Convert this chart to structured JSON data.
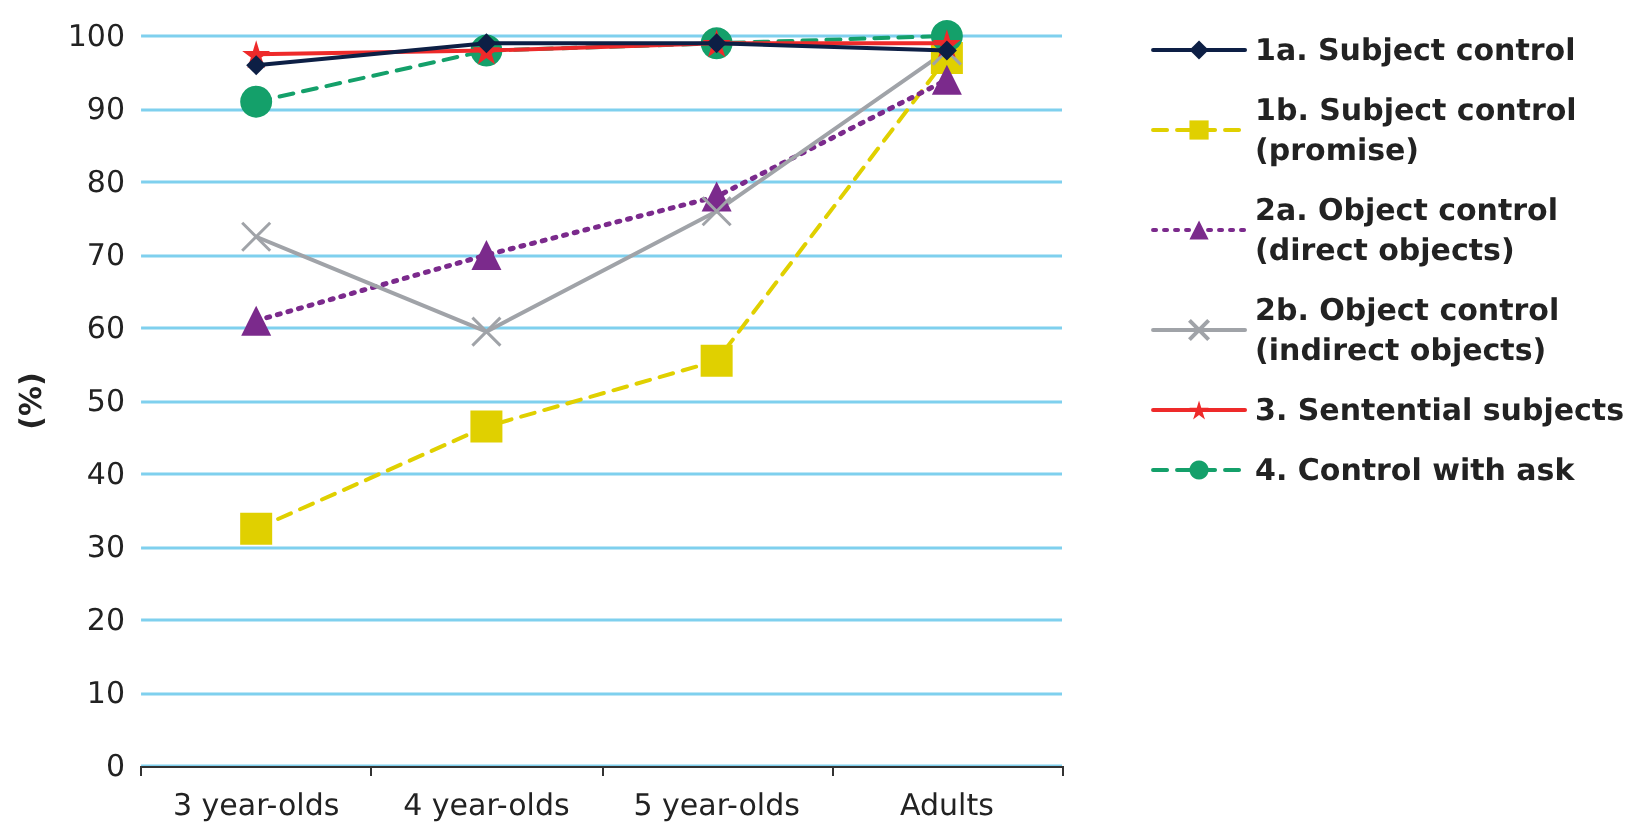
{
  "chart_data": {
    "type": "line",
    "ylabel": "(%)",
    "categories": [
      "3 year-olds",
      "4 year-olds",
      "5 year-olds",
      "Adults"
    ],
    "ylim": [
      0,
      100
    ],
    "yticks": [
      0,
      10,
      20,
      30,
      40,
      50,
      60,
      70,
      80,
      90,
      100
    ],
    "grid": "y",
    "legend": "right",
    "series": [
      {
        "name": "1a. Subject control",
        "color": "#0d1f45",
        "marker": "diamond",
        "line_style": "solid",
        "values": [
          96,
          99,
          99,
          98
        ]
      },
      {
        "name": "1b. Subject control\n(promise)",
        "color": "#e0d000",
        "marker": "square",
        "line_style": "dashed",
        "values": [
          32.5,
          46.5,
          55.5,
          97
        ]
      },
      {
        "name": "2a. Object control\n(direct objects)",
        "color": "#7b2a8c",
        "marker": "triangle",
        "line_style": "dotted",
        "values": [
          61,
          70,
          78,
          94
        ]
      },
      {
        "name": "2b. Object control\n(indirect objects)",
        "color": "#a0a3a8",
        "marker": "cross",
        "line_style": "solid",
        "values": [
          72.5,
          59.5,
          76,
          98
        ]
      },
      {
        "name": "3. Sentential subjects",
        "color": "#ee2a2a",
        "marker": "star",
        "line_style": "solid",
        "values": [
          97.5,
          98,
          99,
          99
        ]
      },
      {
        "name": "4. Control with ask",
        "color": "#14a06a",
        "marker": "circle",
        "line_style": "dashed",
        "values": [
          91,
          98,
          99,
          100
        ]
      }
    ]
  }
}
